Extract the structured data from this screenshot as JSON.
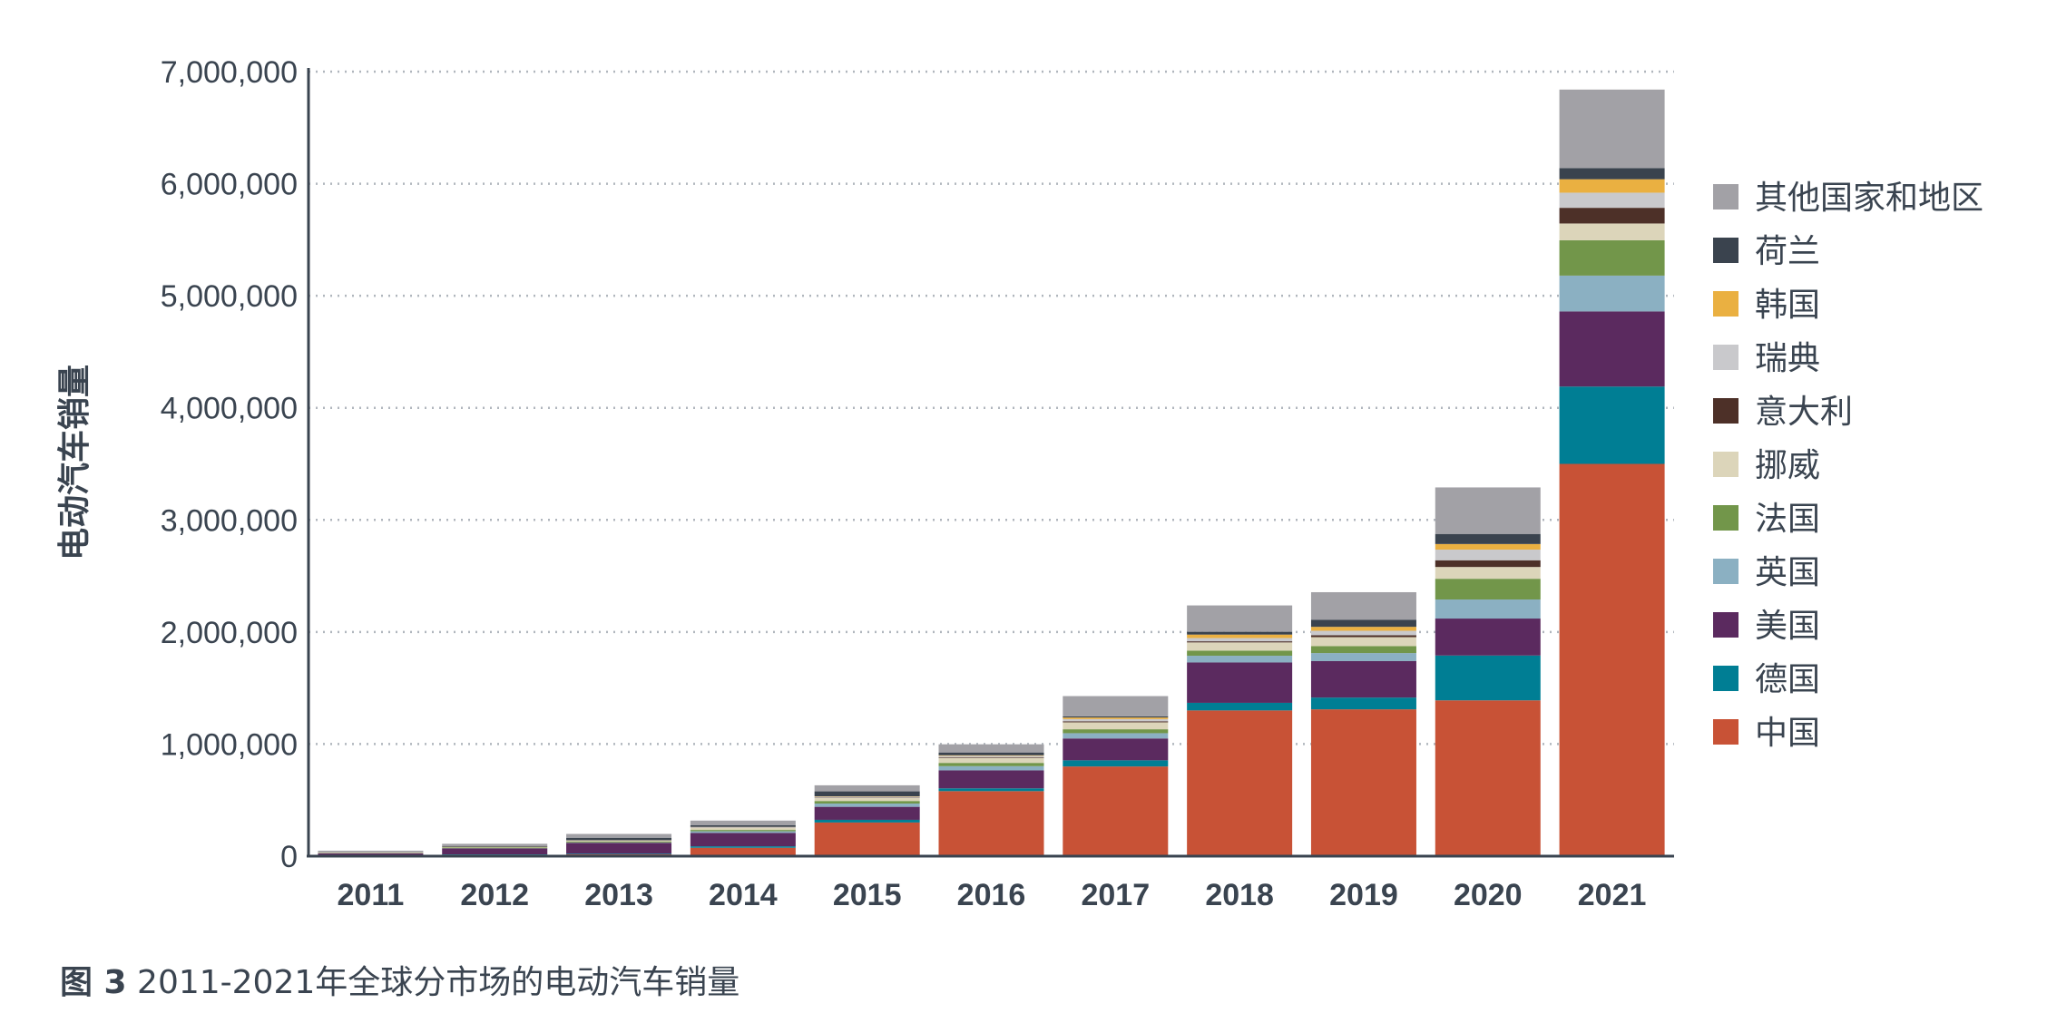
{
  "chart_data": {
    "type": "bar",
    "stacked": true,
    "ylabel": "电动汽车销量",
    "xlabel": "",
    "ylim": [
      0,
      7000000
    ],
    "yticks": [
      0,
      1000000,
      2000000,
      3000000,
      4000000,
      5000000,
      6000000,
      7000000
    ],
    "ytick_labels": [
      "0",
      "1,000,000",
      "2,000,000",
      "3,000,000",
      "4,000,000",
      "5,000,000",
      "6,000,000",
      "7,000,000"
    ],
    "grid": true,
    "legend_position": "right",
    "categories": [
      "2011",
      "2012",
      "2013",
      "2014",
      "2015",
      "2016",
      "2017",
      "2018",
      "2019",
      "2020",
      "2021"
    ],
    "series": [
      {
        "name": "中国",
        "color": "#c85236",
        "values": [
          5000,
          13000,
          16000,
          75000,
          300000,
          580000,
          800000,
          1300000,
          1310000,
          1390000,
          3500000
        ]
      },
      {
        "name": "德国",
        "color": "#007e94",
        "values": [
          2000,
          3000,
          6000,
          13000,
          24000,
          25000,
          55000,
          68000,
          105000,
          400000,
          690000
        ]
      },
      {
        "name": "美国",
        "color": "#5b2a5f",
        "values": [
          17000,
          53000,
          97000,
          119000,
          116000,
          160000,
          195000,
          360000,
          325000,
          330000,
          670000
        ]
      },
      {
        "name": "英国",
        "color": "#8bb0c2",
        "values": [
          1000,
          2000,
          3000,
          15000,
          29000,
          38000,
          47000,
          60000,
          72000,
          170000,
          320000
        ]
      },
      {
        "name": "法国",
        "color": "#72964a",
        "values": [
          2000,
          6000,
          9000,
          12000,
          23000,
          29000,
          35000,
          46000,
          62000,
          185000,
          315000
        ]
      },
      {
        "name": "挪威",
        "color": "#dcd5ba",
        "values": [
          2000,
          4000,
          8000,
          20000,
          26000,
          45000,
          62000,
          73000,
          80000,
          105000,
          150000
        ]
      },
      {
        "name": "意大利",
        "color": "#4d3028",
        "values": [
          1000,
          1000,
          1000,
          2000,
          3000,
          5000,
          9000,
          10000,
          17000,
          60000,
          140000
        ]
      },
      {
        "name": "瑞典",
        "color": "#c9c9cc",
        "values": [
          1000,
          1000,
          1000,
          4000,
          10000,
          13000,
          20000,
          29000,
          40000,
          95000,
          135000
        ]
      },
      {
        "name": "韩国",
        "color": "#eab041",
        "values": [
          1000,
          1000,
          1000,
          1000,
          3000,
          5000,
          14000,
          31000,
          35000,
          50000,
          120000
        ]
      },
      {
        "name": "荷兰",
        "color": "#3a434e",
        "values": [
          1000,
          5000,
          22000,
          14000,
          44000,
          25000,
          11000,
          25000,
          64000,
          90000,
          100000
        ]
      },
      {
        "name": "其他国家和地区",
        "color": "#a2a1a6",
        "values": [
          15000,
          21000,
          34000,
          42000,
          54000,
          73000,
          180000,
          235000,
          245000,
          415000,
          700000
        ]
      }
    ]
  },
  "caption": {
    "label": "图 3",
    "text": "2011-2021年全球分市场的电动汽车销量"
  }
}
